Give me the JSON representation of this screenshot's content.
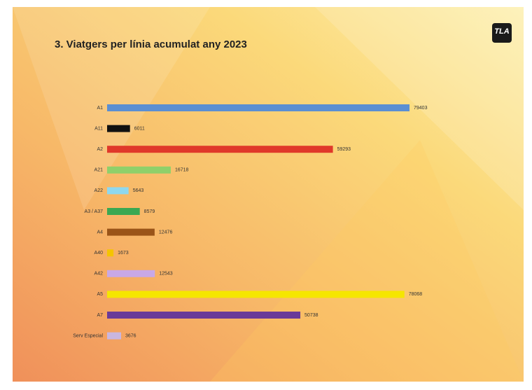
{
  "logo": "TLA",
  "chart_data": {
    "type": "bar",
    "orientation": "horizontal",
    "title": "3. Viatgers per línia acumulat any 2023",
    "categories": [
      "A1",
      "A11",
      "A2",
      "A21",
      "A22",
      "A3 / A37",
      "A4",
      "A40",
      "A42",
      "A5",
      "A7",
      "Serv Especial"
    ],
    "values": [
      79403,
      6011,
      59293,
      16718,
      5643,
      8579,
      12476,
      1673,
      12543,
      78068,
      50738,
      3676
    ],
    "colors": [
      "#5b8fd2",
      "#111111",
      "#e0382a",
      "#8fd06a",
      "#8ed8ef",
      "#3aa852",
      "#9a5418",
      "#f5c400",
      "#c8a8e6",
      "#f5e600",
      "#6a3a98",
      "#c9b6df"
    ]
  }
}
